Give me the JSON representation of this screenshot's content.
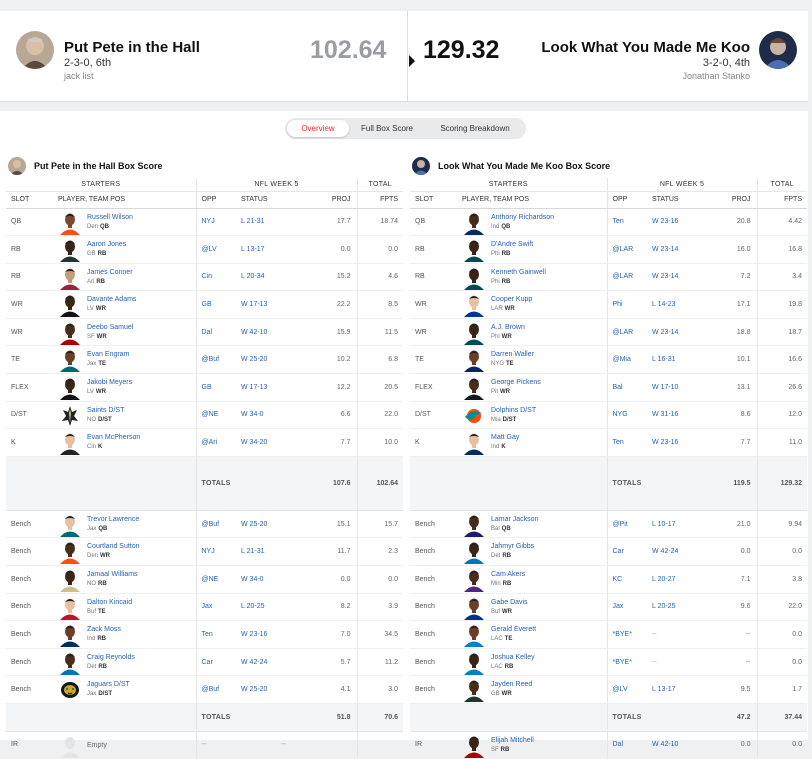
{
  "matchup": {
    "left": {
      "name": "Put Pete in the Hall",
      "record": "2-3-0, 6th",
      "owner": "jack list",
      "score": "102.64"
    },
    "right": {
      "name": "Look What You Made Me Koo",
      "record": "3-2-0, 4th",
      "owner": "Jonathan Stanko",
      "score": "129.32"
    }
  },
  "tabs": [
    "Overview",
    "Full Box Score",
    "Scoring Breakdown"
  ],
  "headers": {
    "starters": "STARTERS",
    "week": "NFL WEEK 5",
    "total": "TOTAL",
    "slot": "SLOT",
    "player": "PLAYER, TEAM POS",
    "opp": "OPP",
    "status": "STATUS",
    "proj": "PROJ",
    "fpts": "FPTS",
    "totals": "TOTALS"
  },
  "left_box": {
    "title": "Put Pete in the Hall Box Score",
    "starters": [
      {
        "slot": "QB",
        "name": "Russell Wilson",
        "team": "Den",
        "pos": "QB",
        "opp": "NYJ",
        "status": "L 21-31",
        "proj": "17.7",
        "fpts": "18.74",
        "skin": "#7b4a2e",
        "jersey": "#fb4f14"
      },
      {
        "slot": "RB",
        "name": "Aaron Jones",
        "team": "GB",
        "pos": "RB",
        "opp": "@LV",
        "status": "L 13-17",
        "proj": "0.0",
        "fpts": "0.0",
        "skin": "#3b2416",
        "jersey": "#203731"
      },
      {
        "slot": "RB",
        "name": "James Conner",
        "team": "Ari",
        "pos": "RB",
        "opp": "Cin",
        "status": "L 20-34",
        "proj": "15.2",
        "fpts": "4.6",
        "skin": "#c79a78",
        "jersey": "#97233f"
      },
      {
        "slot": "WR",
        "name": "Davante Adams",
        "team": "LV",
        "pos": "WR",
        "opp": "GB",
        "status": "W 17-13",
        "proj": "22.2",
        "fpts": "8.5",
        "skin": "#3b2416",
        "jersey": "#111111"
      },
      {
        "slot": "WR",
        "name": "Deebo Samuel",
        "team": "SF",
        "pos": "WR",
        "opp": "Dal",
        "status": "W 42-10",
        "proj": "15.9",
        "fpts": "11.5",
        "skin": "#4a2c1b",
        "jersey": "#aa0000"
      },
      {
        "slot": "TE",
        "name": "Evan Engram",
        "team": "Jax",
        "pos": "TE",
        "opp": "@Buf",
        "status": "W 25-20",
        "proj": "10.2",
        "fpts": "6.8",
        "skin": "#6b3f27",
        "jersey": "#006778"
      },
      {
        "slot": "FLEX",
        "name": "Jakobi Meyers",
        "team": "LV",
        "pos": "WR",
        "opp": "GB",
        "status": "W 17-13",
        "proj": "12.2",
        "fpts": "20.5",
        "skin": "#3b2416",
        "jersey": "#111111"
      },
      {
        "slot": "D/ST",
        "name": "Saints D/ST",
        "team": "NO",
        "pos": "D/ST",
        "opp": "@NE",
        "status": "W 34-0",
        "proj": "6.6",
        "fpts": "22.0",
        "logo": "saints"
      },
      {
        "slot": "K",
        "name": "Evan McPherson",
        "team": "Cin",
        "pos": "K",
        "opp": "@Ari",
        "status": "W 34-20",
        "proj": "7.7",
        "fpts": "10.0",
        "skin": "#e6c0a0",
        "jersey": "#222222"
      }
    ],
    "starters_totals": {
      "proj": "107.6",
      "fpts": "102.64"
    },
    "bench": [
      {
        "slot": "Bench",
        "name": "Trevor Lawrence",
        "team": "Jax",
        "pos": "QB",
        "opp": "@Buf",
        "status": "W 25-20",
        "proj": "15.1",
        "fpts": "15.7",
        "skin": "#e6c0a0",
        "jersey": "#006778"
      },
      {
        "slot": "Bench",
        "name": "Courtland Sutton",
        "team": "Den",
        "pos": "WR",
        "opp": "NYJ",
        "status": "L 21-31",
        "proj": "11.7",
        "fpts": "2.3",
        "skin": "#4a2c1b",
        "jersey": "#fb4f14"
      },
      {
        "slot": "Bench",
        "name": "Jamaal Williams",
        "team": "NO",
        "pos": "RB",
        "opp": "@NE",
        "status": "W 34-0",
        "proj": "0.0",
        "fpts": "0.0",
        "skin": "#3b2416",
        "jersey": "#d3bc8d"
      },
      {
        "slot": "Bench",
        "name": "Dalton Kincaid",
        "team": "Buf",
        "pos": "TE",
        "opp": "Jax",
        "status": "L 20-25",
        "proj": "8.2",
        "fpts": "3.9",
        "skin": "#e6c0a0",
        "jersey": "#c60c30"
      },
      {
        "slot": "Bench",
        "name": "Zack Moss",
        "team": "Ind",
        "pos": "RB",
        "opp": "Ten",
        "status": "W 23-16",
        "proj": "7.0",
        "fpts": "34.5",
        "skin": "#6b3f27",
        "jersey": "#002c5f"
      },
      {
        "slot": "Bench",
        "name": "Craig Reynolds",
        "team": "Det",
        "pos": "RB",
        "opp": "Car",
        "status": "W 42-24",
        "proj": "5.7",
        "fpts": "11.2",
        "skin": "#4a2c1b",
        "jersey": "#0076b6"
      },
      {
        "slot": "Bench",
        "name": "Jaguars D/ST",
        "team": "Jax",
        "pos": "D/ST",
        "opp": "@Buf",
        "status": "W 25-20",
        "proj": "4.1",
        "fpts": "3.0",
        "logo": "jaguars"
      }
    ],
    "bench_totals": {
      "proj": "51.8",
      "fpts": "70.6"
    },
    "ir": {
      "slot": "IR",
      "name": "Empty",
      "opp": "--",
      "status": "--"
    }
  },
  "right_box": {
    "title": "Look What You Made Me Koo Box Score",
    "starters": [
      {
        "slot": "QB",
        "name": "Anthony Richardson",
        "team": "Ind",
        "pos": "QB",
        "opp": "Ten",
        "status": "W 23-16",
        "proj": "20.8",
        "fpts": "4.42",
        "skin": "#4a2c1b",
        "jersey": "#002c5f"
      },
      {
        "slot": "RB",
        "name": "D'Andre Swift",
        "team": "Phi",
        "pos": "RB",
        "opp": "@LAR",
        "status": "W 23-14",
        "proj": "16.0",
        "fpts": "16.8",
        "skin": "#3b2416",
        "jersey": "#004c54"
      },
      {
        "slot": "RB",
        "name": "Kenneth Gainwell",
        "team": "Phi",
        "pos": "RB",
        "opp": "@LAR",
        "status": "W 23-14",
        "proj": "7.2",
        "fpts": "3.4",
        "skin": "#3b2416",
        "jersey": "#004c54"
      },
      {
        "slot": "WR",
        "name": "Cooper Kupp",
        "team": "LAR",
        "pos": "WR",
        "opp": "Phi",
        "status": "L 14-23",
        "proj": "17.1",
        "fpts": "19.8",
        "skin": "#e6c0a0",
        "jersey": "#003594"
      },
      {
        "slot": "WR",
        "name": "A.J. Brown",
        "team": "Phi",
        "pos": "WR",
        "opp": "@LAR",
        "status": "W 23-14",
        "proj": "18.8",
        "fpts": "18.7",
        "skin": "#3b2416",
        "jersey": "#004c54"
      },
      {
        "slot": "TE",
        "name": "Darren Waller",
        "team": "NYG",
        "pos": "TE",
        "opp": "@Mia",
        "status": "L 16-31",
        "proj": "10.1",
        "fpts": "16.6",
        "skin": "#6b3f27",
        "jersey": "#0b2265"
      },
      {
        "slot": "FLEX",
        "name": "George Pickens",
        "team": "Pit",
        "pos": "WR",
        "opp": "Bal",
        "status": "W 17-10",
        "proj": "13.1",
        "fpts": "26.6",
        "skin": "#4a2c1b",
        "jersey": "#101820"
      },
      {
        "slot": "D/ST",
        "name": "Dolphins D/ST",
        "team": "Mia",
        "pos": "D/ST",
        "opp": "NYG",
        "status": "W 31-16",
        "proj": "8.6",
        "fpts": "12.0",
        "logo": "dolphins"
      },
      {
        "slot": "K",
        "name": "Matt Gay",
        "team": "Ind",
        "pos": "K",
        "opp": "Ten",
        "status": "W 23-16",
        "proj": "7.7",
        "fpts": "11.0",
        "skin": "#e6c0a0",
        "jersey": "#002c5f"
      }
    ],
    "starters_totals": {
      "proj": "119.5",
      "fpts": "129.32"
    },
    "bench": [
      {
        "slot": "Bench",
        "name": "Lamar Jackson",
        "team": "Bal",
        "pos": "QB",
        "opp": "@Pit",
        "status": "L 10-17",
        "proj": "21.0",
        "fpts": "9.94",
        "skin": "#4a2c1b",
        "jersey": "#241773"
      },
      {
        "slot": "Bench",
        "name": "Jahmyr Gibbs",
        "team": "Det",
        "pos": "RB",
        "opp": "Car",
        "status": "W 42-24",
        "proj": "0.0",
        "fpts": "0.0",
        "skin": "#3b2416",
        "jersey": "#0076b6"
      },
      {
        "slot": "Bench",
        "name": "Cam Akers",
        "team": "Min",
        "pos": "RB",
        "opp": "KC",
        "status": "L 20-27",
        "proj": "7.1",
        "fpts": "3.8",
        "skin": "#4a2c1b",
        "jersey": "#4f2683"
      },
      {
        "slot": "Bench",
        "name": "Gabe Davis",
        "team": "Buf",
        "pos": "WR",
        "opp": "Jax",
        "status": "L 20-25",
        "proj": "9.6",
        "fpts": "22.0",
        "skin": "#6b3f27",
        "jersey": "#00338d"
      },
      {
        "slot": "Bench",
        "name": "Gerald Everett",
        "team": "LAC",
        "pos": "TE",
        "opp": "*BYE*",
        "status": "--",
        "proj": "--",
        "fpts": "0.0",
        "skin": "#6b3f27",
        "jersey": "#0080c6"
      },
      {
        "slot": "Bench",
        "name": "Joshua Kelley",
        "team": "LAC",
        "pos": "RB",
        "opp": "*BYE*",
        "status": "--",
        "proj": "--",
        "fpts": "0.0",
        "skin": "#3b2416",
        "jersey": "#0080c6"
      },
      {
        "slot": "Bench",
        "name": "Jayden Reed",
        "team": "GB",
        "pos": "WR",
        "opp": "@LV",
        "status": "L 13-17",
        "proj": "9.5",
        "fpts": "1.7",
        "skin": "#4a2c1b",
        "jersey": "#203731"
      }
    ],
    "bench_totals": {
      "proj": "47.2",
      "fpts": "37.44"
    },
    "ir": {
      "slot": "IR",
      "name": "Elijah Mitchell",
      "team": "SF",
      "pos": "RB",
      "opp": "Dal",
      "status": "W 42-10",
      "proj": "0.0",
      "fpts": "0.0",
      "skin": "#3b2416",
      "jersey": "#aa0000"
    }
  }
}
